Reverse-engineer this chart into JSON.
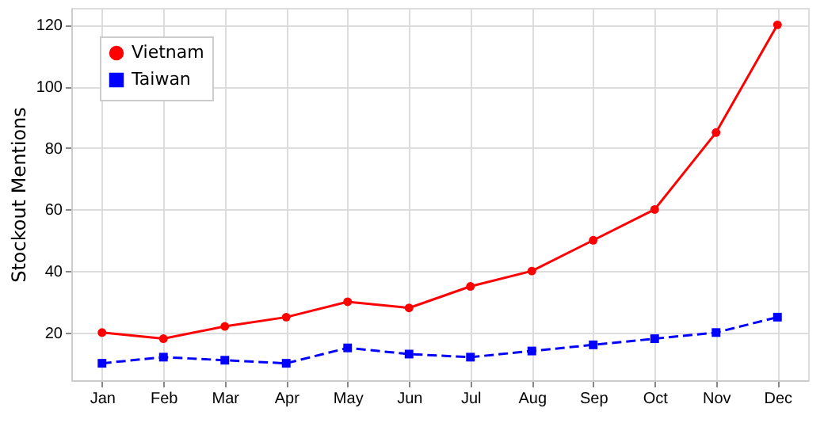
{
  "chart_data": {
    "type": "line",
    "ylabel": "Stockout Mentions",
    "categories": [
      "Jan",
      "Feb",
      "Mar",
      "Apr",
      "May",
      "Jun",
      "Jul",
      "Aug",
      "Sep",
      "Oct",
      "Nov",
      "Dec"
    ],
    "series": [
      {
        "name": "Vietnam",
        "color": "#ff0000",
        "marker": "circle",
        "line_style": "solid",
        "values": [
          20,
          18,
          22,
          25,
          30,
          28,
          35,
          40,
          50,
          60,
          85,
          120
        ]
      },
      {
        "name": "Taiwan",
        "color": "#0000ff",
        "marker": "square",
        "line_style": "dashed",
        "values": [
          10,
          12,
          11,
          10,
          15,
          13,
          12,
          14,
          16,
          18,
          20,
          25
        ]
      }
    ],
    "ylim": [
      4.5,
      125.5
    ],
    "yticks": [
      20,
      40,
      60,
      80,
      100,
      120
    ],
    "grid": true,
    "legend": "top left"
  }
}
